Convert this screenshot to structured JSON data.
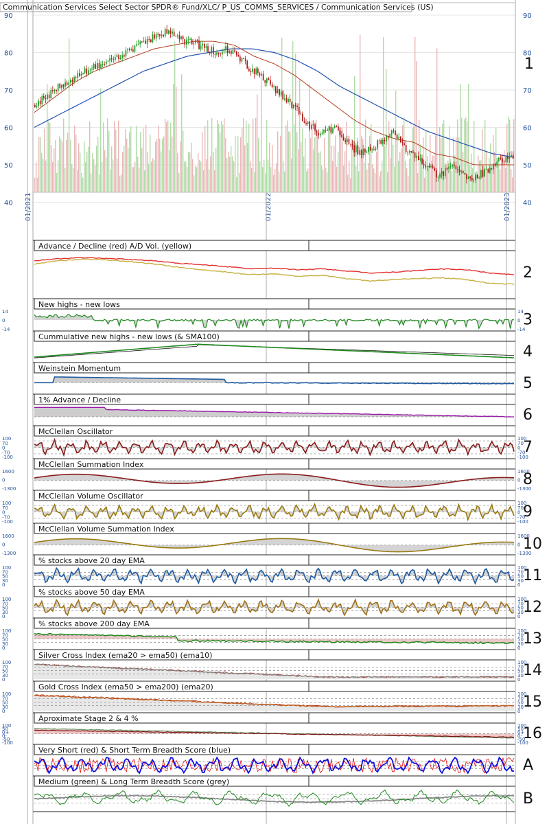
{
  "header": {
    "title": "Communication Services Select Sector SPDR® Fund/XLC/ P_US_COMMS_SERVICES / Communication Services (US)"
  },
  "chart_data": [
    {
      "type": "candlestick",
      "panel": "1",
      "ylim": [
        40,
        92
      ],
      "ticks": [
        40,
        50,
        60,
        70,
        80,
        90
      ],
      "date_labels": [
        "01/2021",
        "01/2022",
        "01/2023"
      ],
      "price_path": [
        66,
        69,
        72,
        74,
        76,
        78,
        80,
        82,
        84,
        86,
        83,
        82,
        80,
        81,
        77,
        74,
        70,
        67,
        62,
        58,
        60,
        55,
        53,
        56,
        59,
        53,
        50,
        47,
        50,
        46,
        48,
        51,
        52
      ],
      "sma50_path": [
        64,
        68,
        72,
        75,
        77,
        79,
        81,
        82,
        83,
        83,
        82,
        79,
        77,
        74,
        70,
        66,
        62,
        59,
        57,
        56,
        53,
        52,
        50,
        50,
        50
      ],
      "sma200_path": [
        60,
        63,
        66,
        69,
        72,
        75,
        77,
        79,
        80,
        81,
        81,
        80,
        78,
        75,
        71,
        68,
        65,
        62,
        59,
        57,
        55,
        53,
        52
      ]
    },
    {
      "type": "line",
      "panel": "2",
      "title": "Advance / Decline (red) A/D Vol. (yellow)",
      "series": [
        {
          "name": "Advance / Decline",
          "color": "#e53030",
          "values": [
            0.8,
            0.85,
            0.88,
            0.86,
            0.83,
            0.8,
            0.74,
            0.7,
            0.66,
            0.6,
            0.62,
            0.58,
            0.6,
            0.55,
            0.5,
            0.52,
            0.56,
            0.6,
            0.58,
            0.5,
            0.46
          ]
        },
        {
          "name": "A/D Vol.",
          "color": "#c8b040",
          "values": [
            0.72,
            0.8,
            0.84,
            0.82,
            0.78,
            0.72,
            0.64,
            0.58,
            0.52,
            0.46,
            0.48,
            0.42,
            0.44,
            0.36,
            0.3,
            0.34,
            0.36,
            0.38,
            0.34,
            0.24,
            0.22
          ]
        }
      ]
    },
    {
      "type": "line",
      "panel": "3",
      "title": "New highs - new lows",
      "ticks": [
        "14",
        "0",
        "-14"
      ]
    },
    {
      "type": "line",
      "panel": "4",
      "title": "Cummulative new highs - new lows (& SMA100)"
    },
    {
      "type": "area",
      "panel": "5",
      "title": "Weinstein Momentum"
    },
    {
      "type": "area",
      "panel": "6",
      "title": "1% Advance / Decline"
    },
    {
      "type": "area",
      "panel": "7",
      "title": "McClellan Oscillator",
      "ticks": [
        "100",
        "70",
        "0",
        "-70",
        "-100"
      ]
    },
    {
      "type": "area",
      "panel": "8",
      "title": "McClellan Summation Index",
      "ticks": [
        "1600",
        "0",
        "-1300"
      ]
    },
    {
      "type": "area",
      "panel": "9",
      "title": "McClellan Volume Oscillator",
      "ticks": [
        "100",
        "70",
        "0",
        "-70",
        "-100"
      ]
    },
    {
      "type": "area",
      "panel": "10",
      "title": "McClellan Volume Summation Index",
      "ticks": [
        "1600",
        "0",
        "-1300"
      ]
    },
    {
      "type": "area",
      "panel": "11",
      "title": "% stocks above 20 day EMA",
      "ticks": [
        "100",
        "70",
        "50",
        "30",
        "0"
      ]
    },
    {
      "type": "area",
      "panel": "12",
      "title": "% stocks above 50 day EMA",
      "ticks": [
        "100",
        "70",
        "50",
        "30",
        "0"
      ]
    },
    {
      "type": "area",
      "panel": "13",
      "title": "% stocks above 200 day EMA",
      "ticks": [
        "100",
        "70",
        "50",
        "30",
        "0"
      ]
    },
    {
      "type": "line",
      "panel": "14",
      "title": "Silver Cross Index (ema20 > ema50) (ema10)",
      "ticks": [
        "100",
        "70",
        "50",
        "30",
        "0"
      ]
    },
    {
      "type": "line",
      "panel": "15",
      "title": "Gold Cross Index (ema50 > ema200) (ema20)",
      "ticks": [
        "100",
        "70",
        "50",
        "30",
        "0"
      ]
    },
    {
      "type": "line",
      "panel": "16",
      "title": "Aproximate Stage 2 & 4 %",
      "ticks": [
        "100",
        "50",
        "0+",
        "0-",
        "-50",
        "-100"
      ]
    },
    {
      "type": "line",
      "panel": "A",
      "title": "Very Short (red) & Short Term Breadth Score (blue)",
      "series": [
        {
          "name": "Very Short",
          "color": "#e81010"
        },
        {
          "name": "Short Term",
          "color": "#1010e0"
        }
      ]
    },
    {
      "type": "line",
      "panel": "B",
      "title": "Medium (green) & Long Term Breadth Score (grey)",
      "series": [
        {
          "name": "Medium",
          "color": "#1f8a1f"
        },
        {
          "name": "Long Term",
          "color": "#888888"
        }
      ]
    }
  ]
}
